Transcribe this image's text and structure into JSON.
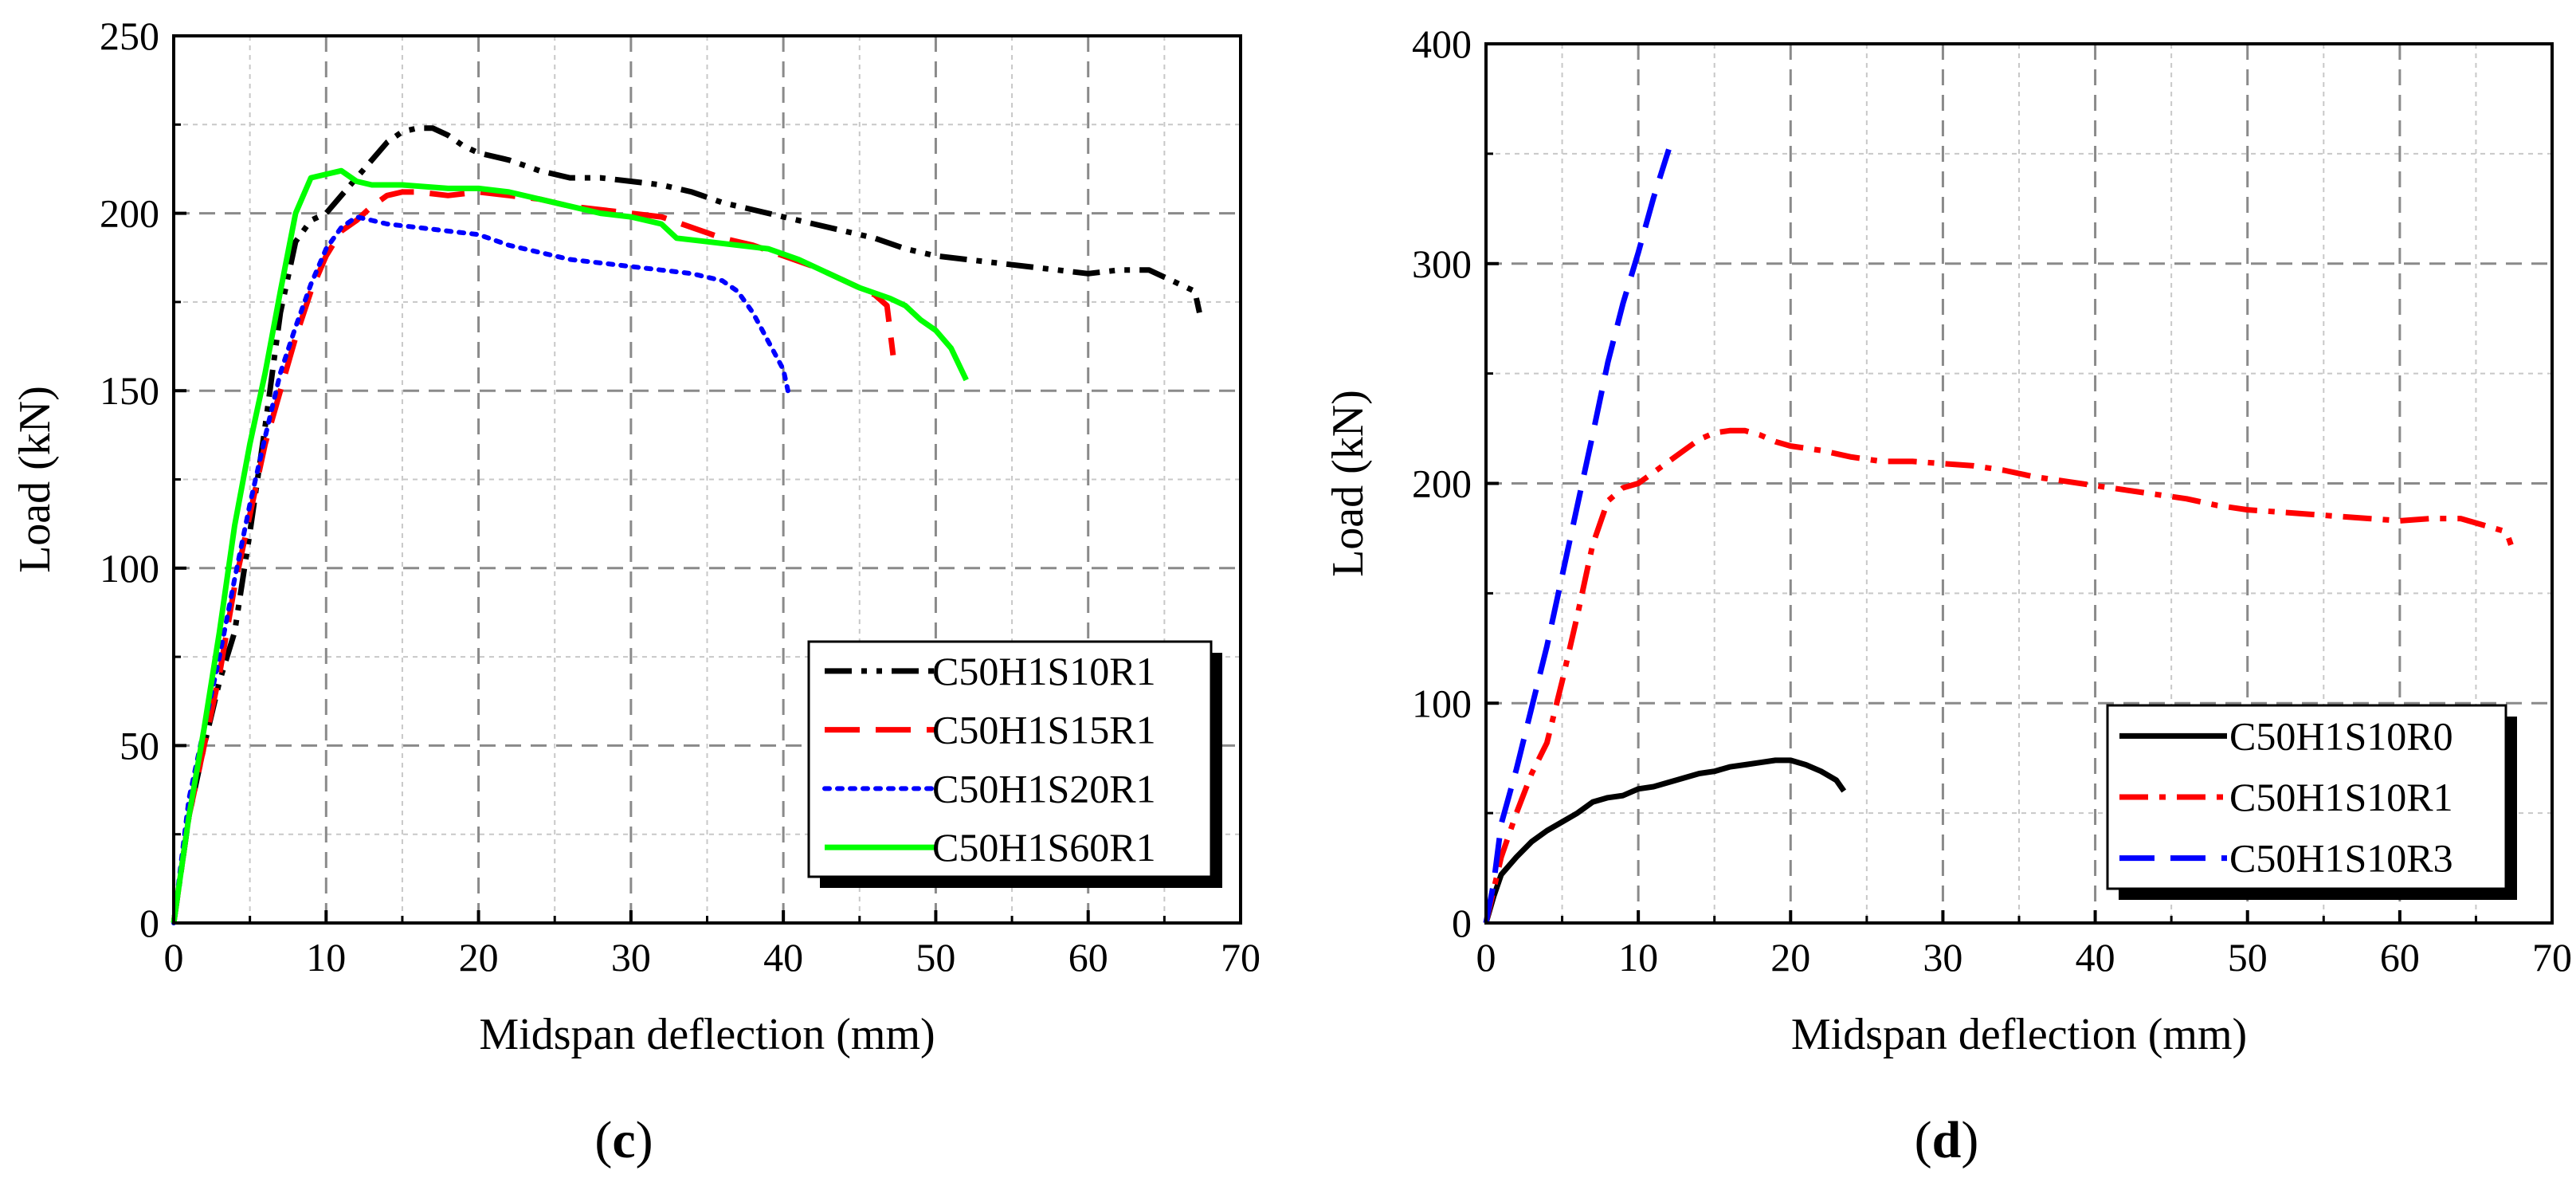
{
  "chart_data": [
    {
      "type": "line",
      "panel": "(c)",
      "panel_letter": "c",
      "xlabel": "Midspan deflection (mm)",
      "ylabel": "Load (kN)",
      "xlim": [
        0,
        70
      ],
      "ylim": [
        0,
        250
      ],
      "xticks": [
        0,
        10,
        20,
        30,
        40,
        50,
        60,
        70
      ],
      "yticks": [
        0,
        50,
        100,
        150,
        200,
        250
      ],
      "grid": true,
      "legend_position": "bottom-right",
      "series": [
        {
          "name": "C50H1S10R1",
          "color": "#000000",
          "style": "dashdotdot",
          "points": [
            [
              0,
              0
            ],
            [
              1,
              30
            ],
            [
              2,
              50
            ],
            [
              3,
              68
            ],
            [
              4,
              82
            ],
            [
              5,
              110
            ],
            [
              6,
              140
            ],
            [
              7,
              172
            ],
            [
              8,
              192
            ],
            [
              9,
              198
            ],
            [
              10,
              200
            ],
            [
              11,
              205
            ],
            [
              12,
              210
            ],
            [
              13,
              215
            ],
            [
              14,
              220
            ],
            [
              15,
              223
            ],
            [
              16,
              224
            ],
            [
              17,
              224
            ],
            [
              18,
              222
            ],
            [
              19,
              219
            ],
            [
              20,
              217
            ],
            [
              22,
              215
            ],
            [
              24,
              212
            ],
            [
              26,
              210
            ],
            [
              28,
              210
            ],
            [
              30,
              209
            ],
            [
              32,
              208
            ],
            [
              34,
              206
            ],
            [
              36,
              203
            ],
            [
              38,
              201
            ],
            [
              40,
              199
            ],
            [
              42,
              197
            ],
            [
              44,
              195
            ],
            [
              46,
              193
            ],
            [
              48,
              190
            ],
            [
              50,
              188
            ],
            [
              52,
              187
            ],
            [
              54,
              186
            ],
            [
              56,
              185
            ],
            [
              58,
              184
            ],
            [
              60,
              183
            ],
            [
              62,
              184
            ],
            [
              64,
              184
            ],
            [
              66,
              180
            ],
            [
              67,
              178
            ],
            [
              67.3,
              172
            ]
          ]
        },
        {
          "name": "C50H1S15R1",
          "color": "#ff0000",
          "style": "dashed",
          "points": [
            [
              0,
              0
            ],
            [
              1,
              30
            ],
            [
              2,
              50
            ],
            [
              3,
              70
            ],
            [
              4,
              95
            ],
            [
              5,
              115
            ],
            [
              6,
              135
            ],
            [
              7,
              150
            ],
            [
              8,
              165
            ],
            [
              9,
              178
            ],
            [
              10,
              188
            ],
            [
              11,
              195
            ],
            [
              12,
              198
            ],
            [
              13,
              202
            ],
            [
              14,
              205
            ],
            [
              15,
              206
            ],
            [
              16,
              206
            ],
            [
              18,
              205
            ],
            [
              20,
              206
            ],
            [
              22,
              205
            ],
            [
              24,
              204
            ],
            [
              26,
              202
            ],
            [
              28,
              201
            ],
            [
              30,
              200
            ],
            [
              32,
              199
            ],
            [
              34,
              196
            ],
            [
              36,
              193
            ],
            [
              38,
              191
            ],
            [
              40,
              188
            ],
            [
              42,
              185
            ],
            [
              44,
              181
            ],
            [
              46,
              177
            ],
            [
              46.8,
              174
            ],
            [
              47.2,
              160
            ]
          ]
        },
        {
          "name": "C50H1S20R1",
          "color": "#0000ff",
          "style": "dotted",
          "points": [
            [
              0,
              0
            ],
            [
              1,
              35
            ],
            [
              2,
              55
            ],
            [
              3,
              75
            ],
            [
              4,
              97
            ],
            [
              5,
              118
            ],
            [
              6,
              137
            ],
            [
              7,
              155
            ],
            [
              8,
              168
            ],
            [
              9,
              180
            ],
            [
              10,
              190
            ],
            [
              11,
              196
            ],
            [
              12,
              199
            ],
            [
              13,
              198
            ],
            [
              14,
              197
            ],
            [
              16,
              196
            ],
            [
              18,
              195
            ],
            [
              20,
              194
            ],
            [
              22,
              191
            ],
            [
              24,
              189
            ],
            [
              26,
              187
            ],
            [
              28,
              186
            ],
            [
              30,
              185
            ],
            [
              32,
              184
            ],
            [
              34,
              183
            ],
            [
              36,
              181
            ],
            [
              37,
              178
            ],
            [
              38,
              172
            ],
            [
              39,
              164
            ],
            [
              40,
              156
            ],
            [
              40.3,
              150
            ]
          ]
        },
        {
          "name": "C50H1S60R1",
          "color": "#00ff00",
          "style": "solid",
          "points": [
            [
              0,
              0
            ],
            [
              1,
              30
            ],
            [
              2,
              55
            ],
            [
              3,
              82
            ],
            [
              4,
              112
            ],
            [
              5,
              135
            ],
            [
              6,
              155
            ],
            [
              7,
              178
            ],
            [
              8,
              200
            ],
            [
              9,
              210
            ],
            [
              10,
              211
            ],
            [
              11,
              212
            ],
            [
              12,
              209
            ],
            [
              13,
              208
            ],
            [
              15,
              208
            ],
            [
              18,
              207
            ],
            [
              20,
              207
            ],
            [
              22,
              206
            ],
            [
              24,
              204
            ],
            [
              26,
              202
            ],
            [
              28,
              200
            ],
            [
              30,
              199
            ],
            [
              32,
              197
            ],
            [
              33,
              193
            ],
            [
              35,
              192
            ],
            [
              37,
              191
            ],
            [
              39,
              190
            ],
            [
              41,
              187
            ],
            [
              43,
              183
            ],
            [
              45,
              179
            ],
            [
              47,
              176
            ],
            [
              48,
              174
            ],
            [
              49,
              170
            ],
            [
              50,
              167
            ],
            [
              51,
              162
            ],
            [
              52,
              153
            ]
          ]
        }
      ]
    },
    {
      "type": "line",
      "panel": "(d)",
      "panel_letter": "d",
      "xlabel": "Midspan deflection (mm)",
      "ylabel": "Load (kN)",
      "xlim": [
        0,
        70
      ],
      "ylim": [
        0,
        400
      ],
      "xticks": [
        0,
        10,
        20,
        30,
        40,
        50,
        60,
        70
      ],
      "yticks": [
        0,
        100,
        200,
        300,
        400
      ],
      "grid": true,
      "legend_position": "bottom-right",
      "series": [
        {
          "name": "C50H1S10R0",
          "color": "#000000",
          "style": "solid",
          "points": [
            [
              0,
              0
            ],
            [
              0.5,
              12
            ],
            [
              1,
              22
            ],
            [
              2,
              30
            ],
            [
              3,
              37
            ],
            [
              4,
              42
            ],
            [
              5,
              46
            ],
            [
              6,
              50
            ],
            [
              7,
              55
            ],
            [
              8,
              57
            ],
            [
              9,
              58
            ],
            [
              10,
              61
            ],
            [
              11,
              62
            ],
            [
              12,
              64
            ],
            [
              13,
              66
            ],
            [
              14,
              68
            ],
            [
              15,
              69
            ],
            [
              16,
              71
            ],
            [
              17,
              72
            ],
            [
              18,
              73
            ],
            [
              19,
              74
            ],
            [
              20,
              74
            ],
            [
              21,
              72
            ],
            [
              22,
              69
            ],
            [
              23,
              65
            ],
            [
              23.5,
              60
            ]
          ]
        },
        {
          "name": "C50H1S10R1",
          "color": "#ff0000",
          "style": "dashdot",
          "points": [
            [
              0,
              0
            ],
            [
              1,
              30
            ],
            [
              2,
              50
            ],
            [
              3,
              68
            ],
            [
              4,
              82
            ],
            [
              5,
              110
            ],
            [
              6,
              140
            ],
            [
              7,
              172
            ],
            [
              8,
              192
            ],
            [
              9,
              198
            ],
            [
              10,
              200
            ],
            [
              11,
              205
            ],
            [
              12,
              210
            ],
            [
              13,
              215
            ],
            [
              14,
              220
            ],
            [
              15,
              223
            ],
            [
              16,
              224
            ],
            [
              17,
              224
            ],
            [
              18,
              222
            ],
            [
              19,
              219
            ],
            [
              20,
              217
            ],
            [
              22,
              215
            ],
            [
              24,
              212
            ],
            [
              26,
              210
            ],
            [
              28,
              210
            ],
            [
              30,
              209
            ],
            [
              32,
              208
            ],
            [
              34,
              206
            ],
            [
              36,
              203
            ],
            [
              38,
              201
            ],
            [
              40,
              199
            ],
            [
              42,
              197
            ],
            [
              44,
              195
            ],
            [
              46,
              193
            ],
            [
              48,
              190
            ],
            [
              50,
              188
            ],
            [
              52,
              187
            ],
            [
              54,
              186
            ],
            [
              56,
              185
            ],
            [
              58,
              184
            ],
            [
              60,
              183
            ],
            [
              62,
              184
            ],
            [
              64,
              184
            ],
            [
              66,
              180
            ],
            [
              67,
              178
            ],
            [
              67.3,
              172
            ]
          ]
        },
        {
          "name": "C50H1S10R3",
          "color": "#0000ff",
          "style": "dashed",
          "points": [
            [
              0,
              0
            ],
            [
              0.5,
              18
            ],
            [
              1,
              45
            ],
            [
              2,
              70
            ],
            [
              3,
              98
            ],
            [
              4,
              126
            ],
            [
              5,
              158
            ],
            [
              6,
              190
            ],
            [
              7,
              222
            ],
            [
              8,
              255
            ],
            [
              9,
              282
            ],
            [
              10,
              305
            ],
            [
              11,
              330
            ],
            [
              12,
              352
            ]
          ]
        }
      ]
    }
  ]
}
